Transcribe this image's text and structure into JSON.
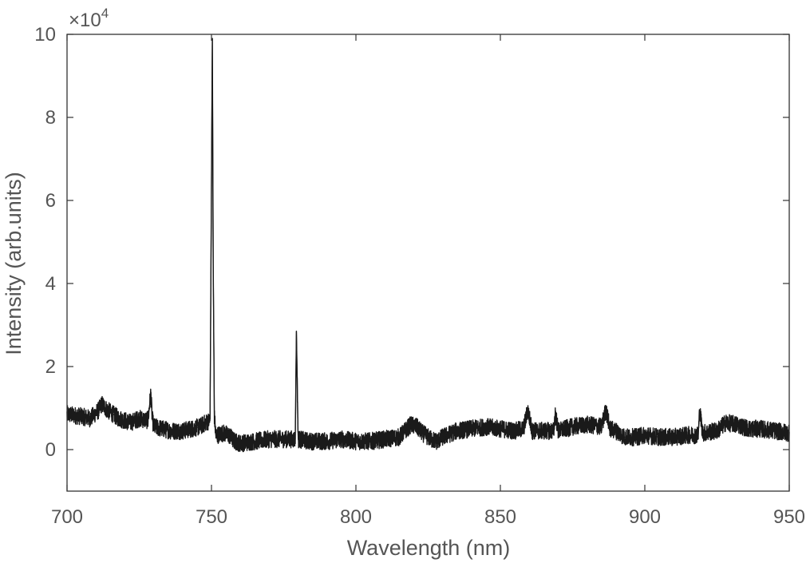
{
  "chart_data": {
    "type": "line",
    "title": "",
    "xlabel": "Wavelength (nm)",
    "ylabel": "Intensity (arb.units)",
    "xlim": [
      700,
      950
    ],
    "ylim": [
      -1,
      10
    ],
    "y_scale_label": "×10",
    "y_scale_exponent": "4",
    "x_ticks": [
      700,
      750,
      800,
      850,
      900,
      950
    ],
    "x_tick_labels": [
      "700",
      "750",
      "800",
      "850",
      "900",
      "950"
    ],
    "y_ticks": [
      0,
      2,
      4,
      6,
      8,
      10
    ],
    "y_tick_labels": [
      "0",
      "2",
      "4",
      "6",
      "8",
      "10"
    ],
    "grid": false,
    "legend": "none",
    "series": [
      {
        "color": "#1a1a1a",
        "x": [
          700,
          705,
          708,
          711,
          712,
          714,
          718,
          722,
          725,
          728,
          729,
          729.5,
          730,
          733,
          736,
          740,
          743,
          746,
          748,
          749.5,
          750.3,
          750.6,
          751,
          751.5,
          752,
          754,
          756,
          758,
          760,
          765,
          770,
          775,
          778,
          779,
          779.4,
          780,
          784,
          790,
          795,
          800,
          805,
          810,
          815,
          819,
          821,
          823,
          826,
          828,
          830,
          835,
          840,
          845,
          850,
          855,
          858,
          859.5,
          861,
          865,
          868.5,
          869,
          870,
          875,
          880,
          885,
          886.5,
          888,
          890,
          893,
          897,
          900,
          905,
          910,
          915,
          918.5,
          919,
          920,
          925,
          928,
          932,
          936,
          940,
          945,
          950
        ],
        "y": [
          0.85,
          0.8,
          0.75,
          0.95,
          1.1,
          0.95,
          0.75,
          0.65,
          0.75,
          0.7,
          1.35,
          0.75,
          0.55,
          0.5,
          0.45,
          0.45,
          0.5,
          0.55,
          0.65,
          0.7,
          9.9,
          4.5,
          0.8,
          0.35,
          0.35,
          0.4,
          0.35,
          0.2,
          0.15,
          0.2,
          0.25,
          0.25,
          0.25,
          0.25,
          2.85,
          0.25,
          0.2,
          0.2,
          0.25,
          0.2,
          0.2,
          0.25,
          0.3,
          0.6,
          0.55,
          0.4,
          0.25,
          0.2,
          0.3,
          0.45,
          0.5,
          0.55,
          0.5,
          0.45,
          0.5,
          0.95,
          0.45,
          0.45,
          0.45,
          0.9,
          0.45,
          0.55,
          0.6,
          0.55,
          0.95,
          0.5,
          0.45,
          0.3,
          0.3,
          0.35,
          0.3,
          0.3,
          0.35,
          0.35,
          0.95,
          0.4,
          0.45,
          0.65,
          0.6,
          0.5,
          0.5,
          0.45,
          0.4
        ]
      }
    ]
  }
}
